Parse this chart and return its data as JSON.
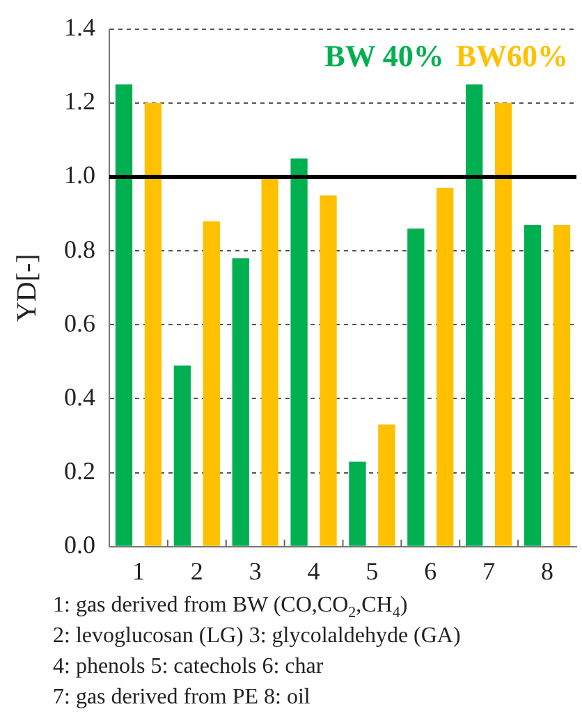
{
  "chart_data": {
    "type": "bar",
    "ylabel": "YD[-]",
    "categories": [
      "1",
      "2",
      "3",
      "4",
      "5",
      "6",
      "7",
      "8"
    ],
    "series": [
      {
        "name": "BW 40%",
        "color": "#00b050",
        "values": [
          1.25,
          0.49,
          0.78,
          1.05,
          0.23,
          0.86,
          1.25,
          0.87
        ]
      },
      {
        "name": "BW60%",
        "color": "#ffc000",
        "values": [
          1.2,
          0.88,
          1.0,
          0.95,
          0.33,
          0.97,
          1.2,
          0.87
        ]
      }
    ],
    "ylim": [
      0,
      1.4
    ],
    "yticks": [
      {
        "value": 0,
        "label": "0.0"
      },
      {
        "value": 0.2,
        "label": "0.2"
      },
      {
        "value": 0.4,
        "label": "0.4"
      },
      {
        "value": 0.6,
        "label": "0.6"
      },
      {
        "value": 0.8,
        "label": "0.8"
      },
      {
        "value": 1,
        "label": "1.0"
      },
      {
        "value": 1.2,
        "label": "1.2"
      },
      {
        "value": 1.4,
        "label": "1.4"
      }
    ],
    "grid": "y",
    "legend": "top right",
    "ref_lines": [
      {
        "axis": "y",
        "value": 1,
        "color": "#000000"
      }
    ],
    "annotations": [
      "1: gas derived from BW (CO,CO$_{2}$,CH$_{4}$)",
      "2: levoglucosan (LG) 3: glycolaldehyde (GA)",
      "4: phenols 5: catechols 6: char",
      "7: gas derived from PE 8: oil"
    ]
  }
}
